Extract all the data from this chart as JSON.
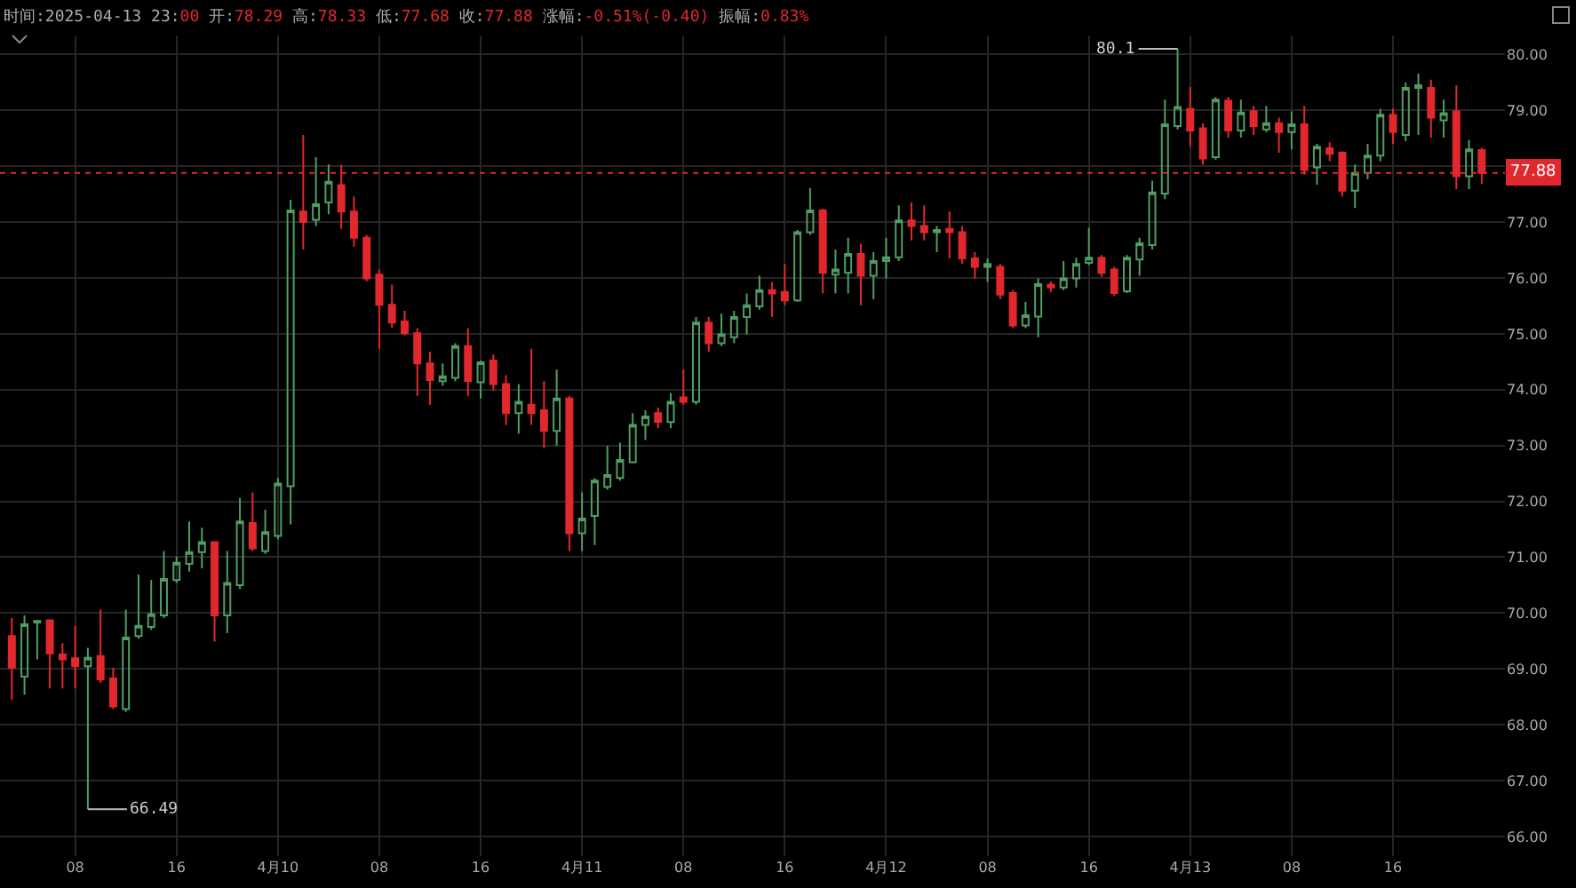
{
  "chart_data": {
    "type": "candlestick",
    "subtitle": "时间:2025-04-13 23:00 开:78.29 高:78.33 低:77.68 收:77.88 涨幅:-0.51%(-0.40) 振幅:0.83%",
    "x": [
      "2025-04-09T03:00",
      "2025-04-09T04:00",
      "2025-04-09T05:00",
      "2025-04-09T06:00",
      "2025-04-09T07:00",
      "2025-04-09T08:00",
      "2025-04-09T09:00",
      "2025-04-09T10:00",
      "2025-04-09T11:00",
      "2025-04-09T12:00",
      "2025-04-09T13:00",
      "2025-04-09T14:00",
      "2025-04-09T15:00",
      "2025-04-09T16:00",
      "2025-04-09T17:00",
      "2025-04-09T18:00",
      "2025-04-09T19:00",
      "2025-04-09T20:00",
      "2025-04-09T21:00",
      "2025-04-09T22:00",
      "2025-04-09T23:00",
      "2025-04-10T00:00",
      "2025-04-10T01:00",
      "2025-04-10T02:00",
      "2025-04-10T03:00",
      "2025-04-10T04:00",
      "2025-04-10T05:00",
      "2025-04-10T06:00",
      "2025-04-10T07:00",
      "2025-04-10T08:00",
      "2025-04-10T09:00",
      "2025-04-10T10:00",
      "2025-04-10T11:00",
      "2025-04-10T12:00",
      "2025-04-10T13:00",
      "2025-04-10T14:00",
      "2025-04-10T15:00",
      "2025-04-10T16:00",
      "2025-04-10T17:00",
      "2025-04-10T18:00",
      "2025-04-10T19:00",
      "2025-04-10T20:00",
      "2025-04-10T21:00",
      "2025-04-10T22:00",
      "2025-04-10T23:00",
      "2025-04-11T00:00",
      "2025-04-11T01:00",
      "2025-04-11T02:00",
      "2025-04-11T03:00",
      "2025-04-11T04:00",
      "2025-04-11T05:00",
      "2025-04-11T06:00",
      "2025-04-11T07:00",
      "2025-04-11T08:00",
      "2025-04-11T09:00",
      "2025-04-11T10:00",
      "2025-04-11T11:00",
      "2025-04-11T12:00",
      "2025-04-11T13:00",
      "2025-04-11T14:00",
      "2025-04-11T15:00",
      "2025-04-11T16:00",
      "2025-04-11T17:00",
      "2025-04-11T18:00",
      "2025-04-11T19:00",
      "2025-04-11T20:00",
      "2025-04-11T21:00",
      "2025-04-11T22:00",
      "2025-04-11T23:00",
      "2025-04-12T00:00",
      "2025-04-12T01:00",
      "2025-04-12T02:00",
      "2025-04-12T03:00",
      "2025-04-12T04:00",
      "2025-04-12T05:00",
      "2025-04-12T06:00",
      "2025-04-12T07:00",
      "2025-04-12T08:00",
      "2025-04-12T09:00",
      "2025-04-12T10:00",
      "2025-04-12T11:00",
      "2025-04-12T12:00",
      "2025-04-12T13:00",
      "2025-04-12T14:00",
      "2025-04-12T15:00",
      "2025-04-12T16:00",
      "2025-04-12T17:00",
      "2025-04-12T18:00",
      "2025-04-12T19:00",
      "2025-04-12T20:00",
      "2025-04-12T21:00",
      "2025-04-12T22:00",
      "2025-04-12T23:00",
      "2025-04-13T00:00",
      "2025-04-13T01:00",
      "2025-04-13T02:00",
      "2025-04-13T03:00",
      "2025-04-13T04:00",
      "2025-04-13T05:00",
      "2025-04-13T06:00",
      "2025-04-13T07:00",
      "2025-04-13T08:00",
      "2025-04-13T09:00",
      "2025-04-13T10:00",
      "2025-04-13T11:00",
      "2025-04-13T12:00",
      "2025-04-13T13:00",
      "2025-04-13T14:00",
      "2025-04-13T15:00",
      "2025-04-13T16:00",
      "2025-04-13T17:00",
      "2025-04-13T18:00",
      "2025-04-13T19:00",
      "2025-04-13T20:00",
      "2025-04-13T21:00",
      "2025-04-13T22:00",
      "2025-04-13T23:00"
    ],
    "ohlc": [
      [
        69.59,
        69.91,
        68.44,
        69.02
      ],
      [
        68.86,
        69.96,
        68.54,
        69.8
      ],
      [
        69.83,
        69.87,
        69.17,
        69.86
      ],
      [
        69.87,
        69.87,
        68.65,
        69.28
      ],
      [
        69.26,
        69.46,
        68.65,
        69.17
      ],
      [
        69.19,
        69.77,
        68.65,
        69.05
      ],
      [
        69.05,
        69.38,
        66.49,
        69.2
      ],
      [
        69.23,
        70.06,
        68.75,
        68.81
      ],
      [
        68.83,
        69.02,
        68.28,
        68.33
      ],
      [
        68.28,
        70.06,
        68.23,
        69.56
      ],
      [
        69.59,
        70.69,
        69.54,
        69.77
      ],
      [
        69.75,
        70.59,
        69.7,
        69.98
      ],
      [
        69.96,
        71.11,
        69.91,
        70.61
      ],
      [
        70.59,
        71.01,
        70.54,
        70.9
      ],
      [
        70.88,
        71.64,
        70.74,
        71.09
      ],
      [
        71.09,
        71.53,
        70.8,
        71.27
      ],
      [
        71.27,
        71.27,
        69.49,
        69.96
      ],
      [
        69.96,
        71.11,
        69.64,
        70.54
      ],
      [
        70.5,
        72.06,
        70.43,
        71.64
      ],
      [
        71.61,
        72.16,
        71.11,
        71.16
      ],
      [
        71.11,
        71.85,
        71.06,
        71.45
      ],
      [
        71.38,
        72.42,
        71.32,
        72.32
      ],
      [
        72.27,
        77.4,
        71.59,
        77.21
      ],
      [
        77.19,
        78.56,
        76.51,
        77.0
      ],
      [
        77.04,
        78.16,
        76.93,
        77.32
      ],
      [
        77.35,
        78.03,
        77.14,
        77.72
      ],
      [
        77.66,
        78.03,
        76.88,
        77.19
      ],
      [
        77.19,
        77.46,
        76.56,
        76.72
      ],
      [
        76.72,
        76.77,
        75.94,
        75.99
      ],
      [
        76.06,
        76.15,
        74.73,
        75.52
      ],
      [
        75.52,
        75.88,
        75.1,
        75.2
      ],
      [
        75.22,
        75.41,
        74.97,
        75.01
      ],
      [
        75.01,
        75.1,
        73.89,
        74.47
      ],
      [
        74.47,
        74.68,
        73.73,
        74.17
      ],
      [
        74.15,
        74.47,
        74.07,
        74.24
      ],
      [
        74.21,
        74.83,
        74.15,
        74.78
      ],
      [
        74.78,
        75.1,
        73.89,
        74.15
      ],
      [
        74.13,
        74.52,
        73.84,
        74.49
      ],
      [
        74.52,
        74.63,
        73.99,
        74.1
      ],
      [
        74.1,
        74.26,
        73.37,
        73.58
      ],
      [
        73.58,
        74.1,
        73.21,
        73.78
      ],
      [
        73.73,
        74.73,
        73.37,
        73.58
      ],
      [
        73.63,
        74.15,
        72.95,
        73.26
      ],
      [
        73.26,
        74.36,
        73.0,
        73.84
      ],
      [
        73.84,
        73.89,
        71.11,
        71.43
      ],
      [
        71.43,
        72.16,
        71.11,
        71.69
      ],
      [
        71.74,
        72.42,
        71.22,
        72.37
      ],
      [
        72.26,
        72.99,
        72.21,
        72.47
      ],
      [
        72.42,
        73.05,
        72.37,
        72.74
      ],
      [
        72.7,
        73.58,
        72.68,
        73.37
      ],
      [
        73.37,
        73.63,
        73.1,
        73.52
      ],
      [
        73.58,
        73.68,
        73.31,
        73.42
      ],
      [
        73.42,
        73.94,
        73.31,
        73.78
      ],
      [
        73.86,
        74.36,
        73.73,
        73.78
      ],
      [
        73.78,
        75.3,
        73.73,
        75.2
      ],
      [
        75.2,
        75.3,
        74.68,
        74.83
      ],
      [
        74.83,
        75.36,
        74.78,
        74.99
      ],
      [
        74.94,
        75.41,
        74.83,
        75.3
      ],
      [
        75.3,
        75.72,
        74.99,
        75.51
      ],
      [
        75.49,
        76.04,
        75.43,
        75.78
      ],
      [
        75.78,
        75.93,
        75.3,
        75.72
      ],
      [
        75.75,
        76.25,
        75.51,
        75.6
      ],
      [
        75.6,
        76.86,
        75.57,
        76.82
      ],
      [
        76.82,
        77.61,
        76.77,
        77.21
      ],
      [
        77.21,
        77.24,
        75.72,
        76.09
      ],
      [
        76.06,
        76.51,
        75.72,
        76.15
      ],
      [
        76.09,
        76.72,
        75.72,
        76.43
      ],
      [
        76.43,
        76.61,
        75.51,
        76.04
      ],
      [
        76.04,
        76.46,
        75.62,
        76.3
      ],
      [
        76.3,
        76.72,
        75.99,
        76.37
      ],
      [
        76.37,
        77.3,
        76.3,
        77.03
      ],
      [
        77.03,
        77.35,
        76.67,
        76.93
      ],
      [
        76.93,
        77.3,
        76.67,
        76.82
      ],
      [
        76.82,
        76.93,
        76.46,
        76.86
      ],
      [
        76.88,
        77.19,
        76.35,
        76.82
      ],
      [
        76.82,
        76.93,
        76.25,
        76.35
      ],
      [
        76.35,
        76.46,
        75.99,
        76.2
      ],
      [
        76.2,
        76.35,
        75.93,
        76.25
      ],
      [
        76.2,
        76.25,
        75.62,
        75.7
      ],
      [
        75.73,
        75.78,
        75.1,
        75.15
      ],
      [
        75.15,
        75.57,
        75.1,
        75.33
      ],
      [
        75.31,
        75.99,
        74.94,
        75.89
      ],
      [
        75.88,
        75.94,
        75.75,
        75.83
      ],
      [
        75.83,
        76.3,
        75.78,
        75.99
      ],
      [
        75.99,
        76.36,
        75.83,
        76.25
      ],
      [
        76.27,
        76.9,
        76.23,
        76.36
      ],
      [
        76.36,
        76.41,
        76.02,
        76.09
      ],
      [
        76.15,
        76.2,
        75.68,
        75.73
      ],
      [
        75.76,
        76.41,
        75.73,
        76.36
      ],
      [
        76.33,
        76.72,
        76.04,
        76.62
      ],
      [
        76.59,
        77.74,
        76.51,
        77.53
      ],
      [
        77.51,
        79.19,
        77.41,
        78.75
      ],
      [
        78.72,
        80.1,
        78.66,
        79.06
      ],
      [
        79.03,
        79.42,
        78.35,
        78.64
      ],
      [
        78.68,
        78.77,
        78.03,
        78.14
      ],
      [
        78.16,
        79.24,
        78.12,
        79.19
      ],
      [
        79.17,
        79.24,
        78.51,
        78.64
      ],
      [
        78.64,
        79.19,
        78.51,
        78.96
      ],
      [
        78.98,
        79.08,
        78.56,
        78.72
      ],
      [
        78.66,
        79.08,
        78.61,
        78.77
      ],
      [
        78.77,
        78.87,
        78.24,
        78.61
      ],
      [
        78.61,
        78.98,
        78.3,
        78.75
      ],
      [
        78.75,
        79.08,
        77.85,
        77.93
      ],
      [
        77.98,
        78.4,
        77.67,
        78.35
      ],
      [
        78.32,
        78.43,
        78.09,
        78.22
      ],
      [
        78.24,
        78.27,
        77.46,
        77.56
      ],
      [
        77.56,
        78.03,
        77.25,
        77.88
      ],
      [
        77.88,
        78.4,
        77.77,
        78.19
      ],
      [
        78.19,
        79.03,
        78.09,
        78.92
      ],
      [
        78.92,
        79.03,
        78.4,
        78.61
      ],
      [
        78.56,
        79.5,
        78.45,
        79.4
      ],
      [
        79.4,
        79.66,
        78.56,
        79.45
      ],
      [
        79.4,
        79.55,
        78.51,
        78.87
      ],
      [
        78.82,
        79.19,
        78.51,
        78.95
      ],
      [
        78.98,
        79.45,
        77.59,
        77.82
      ],
      [
        77.82,
        78.47,
        77.59,
        78.3
      ],
      [
        78.29,
        78.33,
        77.68,
        77.88
      ]
    ],
    "xlim": [
      "2025-04-09T02:04",
      "2025-04-14T00:50"
    ],
    "xticks": [
      {
        "value": "2025-04-09T08:00",
        "label": "08"
      },
      {
        "value": "2025-04-09T16:00",
        "label": "16"
      },
      {
        "value": "2025-04-10T00:00",
        "label": "4月10"
      },
      {
        "value": "2025-04-10T08:00",
        "label": "08"
      },
      {
        "value": "2025-04-10T16:00",
        "label": "16"
      },
      {
        "value": "2025-04-11T00:00",
        "label": "4月11"
      },
      {
        "value": "2025-04-11T08:00",
        "label": "08"
      },
      {
        "value": "2025-04-11T16:00",
        "label": "16"
      },
      {
        "value": "2025-04-12T00:00",
        "label": "4月12"
      },
      {
        "value": "2025-04-12T08:00",
        "label": "08"
      },
      {
        "value": "2025-04-12T16:00",
        "label": "16"
      },
      {
        "value": "2025-04-13T00:00",
        "label": "4月13"
      },
      {
        "value": "2025-04-13T08:00",
        "label": "08"
      },
      {
        "value": "2025-04-13T16:00",
        "label": "16"
      }
    ],
    "ylim": [
      65.65,
      80.34
    ],
    "yticks": [
      {
        "value": 66,
        "label": "66.00"
      },
      {
        "value": 67,
        "label": "67.00"
      },
      {
        "value": 68,
        "label": "68.00"
      },
      {
        "value": 69,
        "label": "69.00"
      },
      {
        "value": 70,
        "label": "70.00"
      },
      {
        "value": 71,
        "label": "71.00"
      },
      {
        "value": 72,
        "label": "72.00"
      },
      {
        "value": 73,
        "label": "73.00"
      },
      {
        "value": 74,
        "label": "74.00"
      },
      {
        "value": 75,
        "label": "75.00"
      },
      {
        "value": 76,
        "label": "76.00"
      },
      {
        "value": 77,
        "label": "77.00"
      },
      {
        "value": 78,
        "label": null
      },
      {
        "value": 79,
        "label": "79.00"
      },
      {
        "value": 80,
        "label": "80.00"
      }
    ],
    "ref_lines": [
      {
        "axis": "y",
        "value": 77.88,
        "label": "77.88",
        "color": "#e0282e",
        "line_style": "dotted"
      }
    ],
    "annotations": [
      {
        "text": "80.1",
        "x": "2025-04-12T23:00",
        "y": 80.1
      },
      {
        "text": "66.49",
        "x": "2025-04-09T09:00",
        "y": 66.49
      }
    ],
    "grid": true,
    "legend": false
  }
}
